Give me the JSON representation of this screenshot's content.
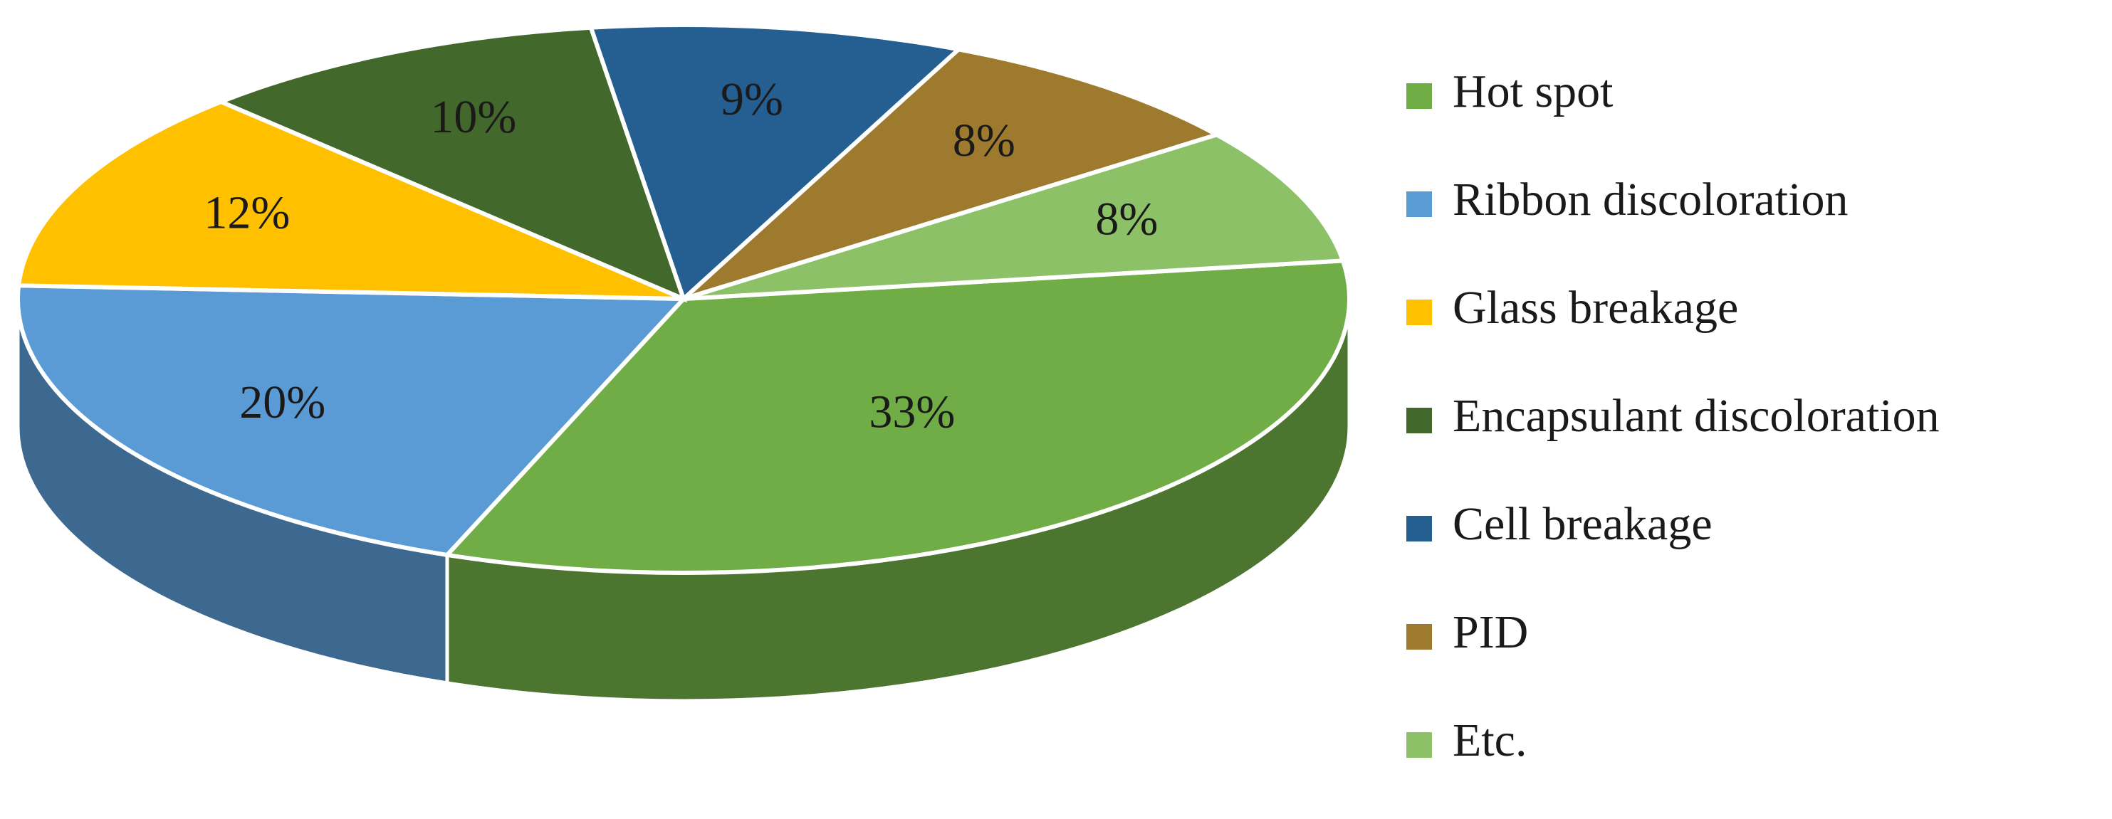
{
  "chart_data": {
    "type": "pie3d",
    "categories": [
      "Hot spot",
      "Ribbon discoloration",
      "Glass breakage",
      "Encapsulant discoloration",
      "Cell breakage",
      "PID",
      "Etc."
    ],
    "values": [
      33,
      20,
      12,
      10,
      9,
      8,
      8
    ],
    "value_labels": [
      "33%",
      "20%",
      "12%",
      "10%",
      "9%",
      "8%",
      "8%"
    ],
    "colors": [
      "#70ad47",
      "#5b9bd5",
      "#ffc000",
      "#43682b",
      "#255e91",
      "#9e7a2f",
      "#8cc168"
    ],
    "legend": "right"
  }
}
